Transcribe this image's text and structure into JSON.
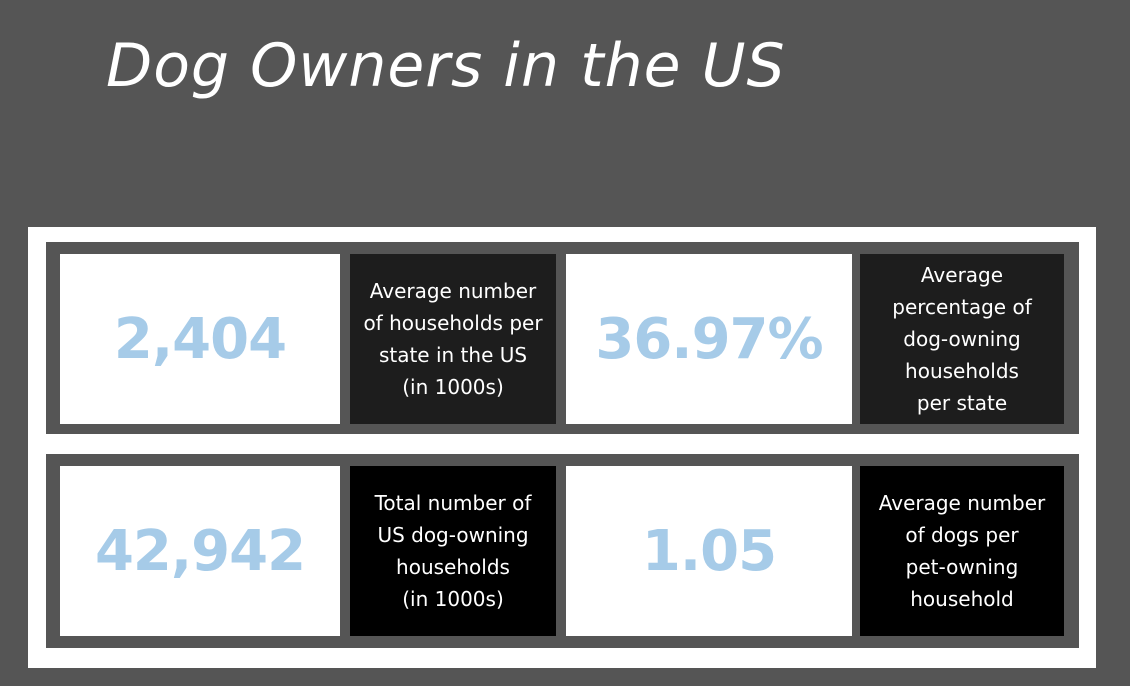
{
  "page": {
    "title": "Dog Owners in the US"
  },
  "colors": {
    "background": "#555555",
    "value_text": "#a6cbe8",
    "label_box_dark": "#1d1d1d",
    "label_box_black": "#000000"
  },
  "stats": [
    {
      "value": "2,404",
      "label": "Average number\nof households per\nstate in the US\n(in 1000s)"
    },
    {
      "value": "36.97%",
      "label": "Average\npercentage of\ndog-owning\nhouseholds\nper state"
    },
    {
      "value": "42,942",
      "label": "Total number of\nUS dog-owning\nhouseholds\n(in 1000s)"
    },
    {
      "value": "1.05",
      "label": "Average number\nof dogs per\npet-owning\nhousehold"
    }
  ]
}
